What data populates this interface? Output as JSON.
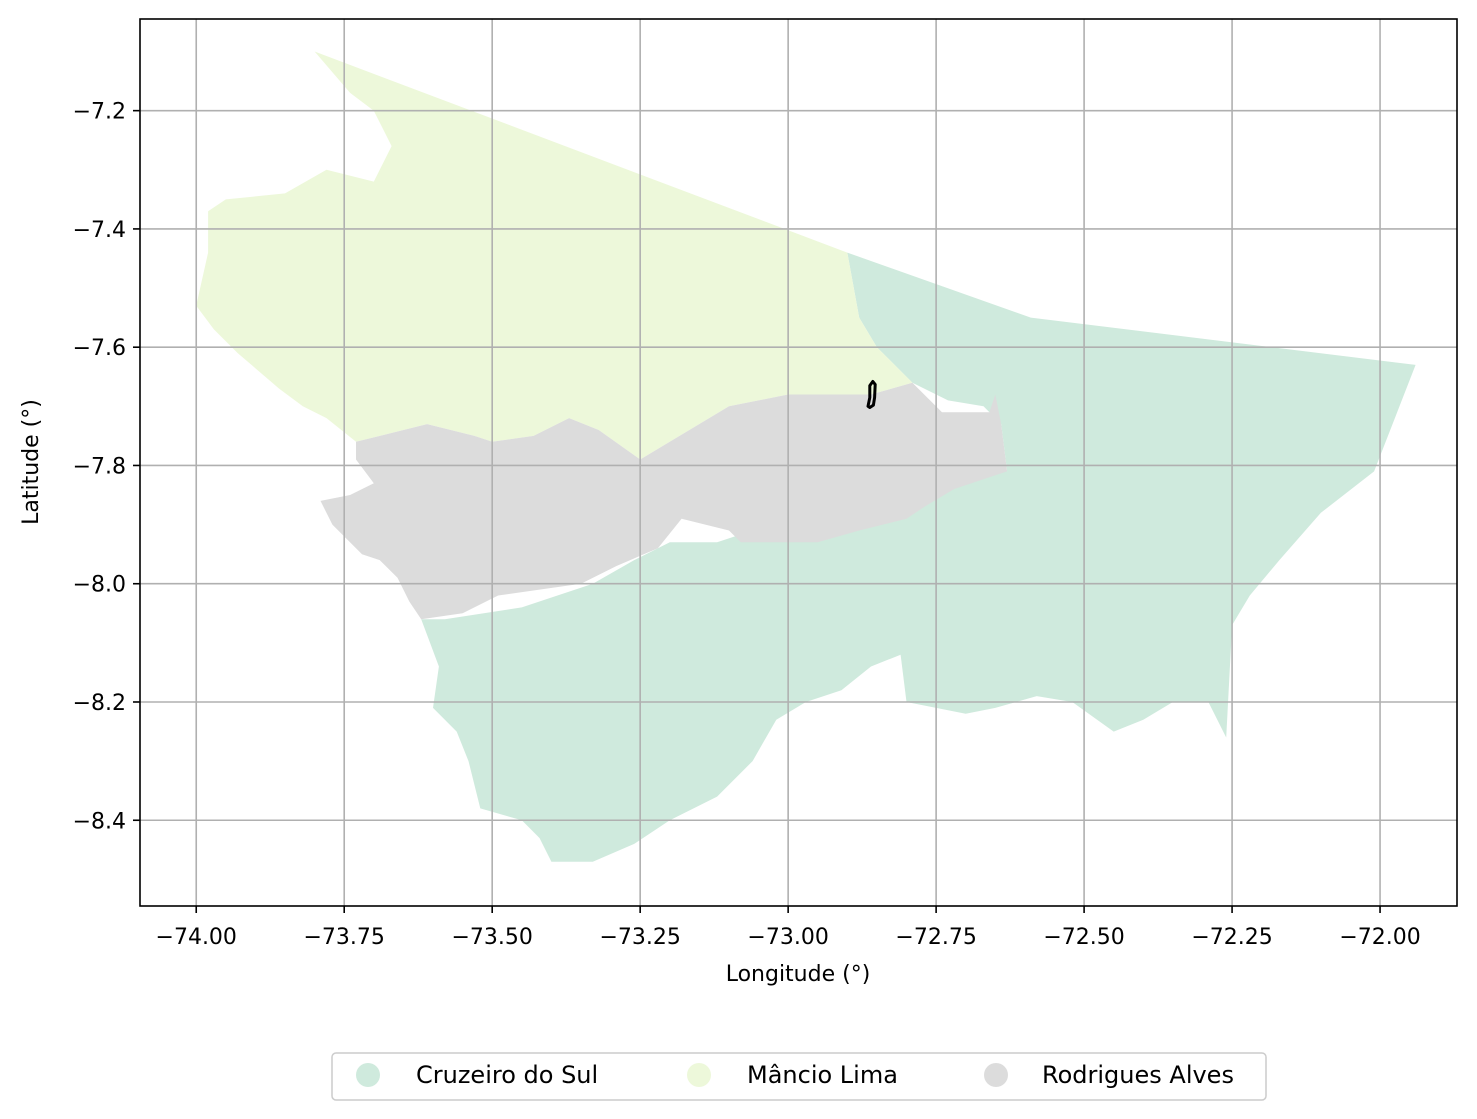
{
  "chart_data": {
    "type": "map",
    "xlabel": "Longitude (°)",
    "ylabel": "Latitude (°)",
    "xlim": [
      -74.095,
      -71.87
    ],
    "ylim": [
      -8.545,
      -7.045
    ],
    "grid": true,
    "legend_placement": "bottom-center, below plot",
    "x_ticks": [
      {
        "value": -74.0,
        "label": "−74.00"
      },
      {
        "value": -73.75,
        "label": "−73.75"
      },
      {
        "value": -73.5,
        "label": "−73.50"
      },
      {
        "value": -73.25,
        "label": "−73.25"
      },
      {
        "value": -73.0,
        "label": "−73.00"
      },
      {
        "value": -72.75,
        "label": "−72.75"
      },
      {
        "value": -72.5,
        "label": "−72.50"
      },
      {
        "value": -72.25,
        "label": "−72.25"
      },
      {
        "value": -72.0,
        "label": "−72.00"
      }
    ],
    "y_ticks": [
      {
        "value": -7.2,
        "label": "−7.2"
      },
      {
        "value": -7.4,
        "label": "−7.4"
      },
      {
        "value": -7.6,
        "label": "−7.6"
      },
      {
        "value": -7.8,
        "label": "−7.8"
      },
      {
        "value": -8.0,
        "label": "−8.0"
      },
      {
        "value": -8.2,
        "label": "−8.2"
      },
      {
        "value": -8.4,
        "label": "−8.4"
      }
    ],
    "regions": [
      {
        "name": "Cruzeiro do Sul",
        "color": "#cfeadd",
        "polygon": [
          [
            -72.9,
            -7.44
          ],
          [
            -72.59,
            -7.55
          ],
          [
            -71.94,
            -7.63
          ],
          [
            -72.01,
            -7.81
          ],
          [
            -72.1,
            -7.88
          ],
          [
            -72.17,
            -7.96
          ],
          [
            -72.22,
            -8.02
          ],
          [
            -72.25,
            -8.07
          ],
          [
            -72.26,
            -8.26
          ],
          [
            -72.29,
            -8.2
          ],
          [
            -72.35,
            -8.2
          ],
          [
            -72.4,
            -8.23
          ],
          [
            -72.45,
            -8.25
          ],
          [
            -72.52,
            -8.2
          ],
          [
            -72.58,
            -8.19
          ],
          [
            -72.65,
            -8.21
          ],
          [
            -72.7,
            -8.22
          ],
          [
            -72.75,
            -8.21
          ],
          [
            -72.8,
            -8.2
          ],
          [
            -72.81,
            -8.12
          ],
          [
            -72.86,
            -8.14
          ],
          [
            -72.91,
            -8.18
          ],
          [
            -72.97,
            -8.2
          ],
          [
            -73.02,
            -8.23
          ],
          [
            -73.06,
            -8.3
          ],
          [
            -73.12,
            -8.36
          ],
          [
            -73.2,
            -8.4
          ],
          [
            -73.26,
            -8.44
          ],
          [
            -73.33,
            -8.47
          ],
          [
            -73.4,
            -8.47
          ],
          [
            -73.42,
            -8.43
          ],
          [
            -73.45,
            -8.4
          ],
          [
            -73.52,
            -8.38
          ],
          [
            -73.54,
            -8.3
          ],
          [
            -73.56,
            -8.25
          ],
          [
            -73.6,
            -8.21
          ],
          [
            -73.59,
            -8.14
          ],
          [
            -73.62,
            -8.06
          ],
          [
            -73.58,
            -8.06
          ],
          [
            -73.45,
            -8.04
          ],
          [
            -73.33,
            -8.0
          ],
          [
            -73.26,
            -7.96
          ],
          [
            -73.2,
            -7.93
          ],
          [
            -73.12,
            -7.93
          ],
          [
            -73.09,
            -7.92
          ],
          [
            -72.98,
            -7.88
          ],
          [
            -72.88,
            -7.88
          ],
          [
            -72.8,
            -7.83
          ],
          [
            -72.74,
            -7.82
          ],
          [
            -72.66,
            -7.8
          ],
          [
            -72.63,
            -7.81
          ],
          [
            -72.64,
            -7.73
          ],
          [
            -72.67,
            -7.7
          ],
          [
            -72.73,
            -7.69
          ],
          [
            -72.79,
            -7.66
          ],
          [
            -72.85,
            -7.6
          ],
          [
            -72.88,
            -7.55
          ]
        ]
      },
      {
        "name": "Mâncio Lima",
        "color": "#edf8da",
        "polygon": [
          [
            -73.8,
            -7.1
          ],
          [
            -72.9,
            -7.44
          ],
          [
            -72.88,
            -7.55
          ],
          [
            -72.85,
            -7.6
          ],
          [
            -72.79,
            -7.66
          ],
          [
            -72.86,
            -7.68
          ],
          [
            -72.95,
            -7.68
          ],
          [
            -73.0,
            -7.68
          ],
          [
            -73.1,
            -7.7
          ],
          [
            -73.25,
            -7.79
          ],
          [
            -73.32,
            -7.74
          ],
          [
            -73.37,
            -7.72
          ],
          [
            -73.43,
            -7.75
          ],
          [
            -73.5,
            -7.76
          ],
          [
            -73.53,
            -7.75
          ],
          [
            -73.61,
            -7.73
          ],
          [
            -73.73,
            -7.76
          ],
          [
            -73.78,
            -7.72
          ],
          [
            -73.82,
            -7.7
          ],
          [
            -73.86,
            -7.67
          ],
          [
            -73.93,
            -7.61
          ],
          [
            -73.97,
            -7.57
          ],
          [
            -74.0,
            -7.53
          ],
          [
            -73.98,
            -7.44
          ],
          [
            -73.98,
            -7.37
          ],
          [
            -73.95,
            -7.35
          ],
          [
            -73.85,
            -7.34
          ],
          [
            -73.78,
            -7.3
          ],
          [
            -73.7,
            -7.32
          ],
          [
            -73.67,
            -7.26
          ],
          [
            -73.7,
            -7.2
          ],
          [
            -73.74,
            -7.17
          ]
        ]
      },
      {
        "name": "Rodrigues Alves",
        "color": "#dcdcdc",
        "polygon": [
          [
            -73.25,
            -7.79
          ],
          [
            -73.1,
            -7.7
          ],
          [
            -73.0,
            -7.68
          ],
          [
            -72.95,
            -7.68
          ],
          [
            -72.86,
            -7.68
          ],
          [
            -72.79,
            -7.66
          ],
          [
            -72.74,
            -7.71
          ],
          [
            -72.7,
            -7.71
          ],
          [
            -72.66,
            -7.71
          ],
          [
            -72.65,
            -7.68
          ],
          [
            -72.64,
            -7.73
          ],
          [
            -72.63,
            -7.81
          ],
          [
            -72.66,
            -7.82
          ],
          [
            -72.72,
            -7.84
          ],
          [
            -72.77,
            -7.87
          ],
          [
            -72.8,
            -7.89
          ],
          [
            -72.88,
            -7.91
          ],
          [
            -72.95,
            -7.93
          ],
          [
            -73.08,
            -7.93
          ],
          [
            -73.1,
            -7.91
          ],
          [
            -73.18,
            -7.89
          ],
          [
            -73.22,
            -7.94
          ],
          [
            -73.29,
            -7.97
          ],
          [
            -73.35,
            -8.0
          ],
          [
            -73.42,
            -8.01
          ],
          [
            -73.49,
            -8.02
          ],
          [
            -73.55,
            -8.05
          ],
          [
            -73.62,
            -8.06
          ],
          [
            -73.64,
            -8.03
          ],
          [
            -73.66,
            -7.99
          ],
          [
            -73.69,
            -7.96
          ],
          [
            -73.72,
            -7.95
          ],
          [
            -73.77,
            -7.9
          ],
          [
            -73.79,
            -7.86
          ],
          [
            -73.74,
            -7.85
          ],
          [
            -73.7,
            -7.83
          ],
          [
            -73.73,
            -7.79
          ],
          [
            -73.73,
            -7.76
          ],
          [
            -73.61,
            -7.73
          ],
          [
            -73.53,
            -7.75
          ],
          [
            -73.5,
            -7.76
          ],
          [
            -73.43,
            -7.75
          ],
          [
            -73.37,
            -7.72
          ],
          [
            -73.32,
            -7.74
          ]
        ]
      }
    ],
    "outline_feature": {
      "color": "#000000",
      "polygon": [
        [
          -72.865,
          -7.7
        ],
        [
          -72.862,
          -7.685
        ],
        [
          -72.862,
          -7.665
        ],
        [
          -72.857,
          -7.658
        ],
        [
          -72.853,
          -7.663
        ],
        [
          -72.854,
          -7.685
        ],
        [
          -72.856,
          -7.698
        ],
        [
          -72.862,
          -7.702
        ]
      ]
    }
  },
  "legend": {
    "items": [
      {
        "label": "Cruzeiro do Sul",
        "color": "#cfeadd"
      },
      {
        "label": "Mâncio Lima",
        "color": "#edf8da"
      },
      {
        "label": "Rodrigues Alves",
        "color": "#dcdcdc"
      }
    ]
  }
}
